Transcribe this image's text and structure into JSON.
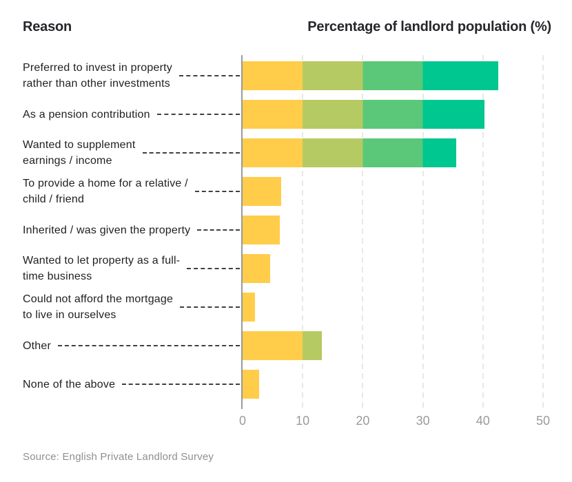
{
  "header": {
    "left_title": "Reason",
    "right_title": "Percentage of landlord population (%)"
  },
  "source_note": "Source: English Private Landlord Survey",
  "chart_data": {
    "type": "bar",
    "orientation": "horizontal",
    "title": "",
    "xlabel": "Percentage of landlord population (%)",
    "ylabel": "Reason",
    "categories": [
      "Preferred to invest in property\nrather than other investments",
      "As a pension contribution",
      "Wanted to supplement\nearnings / income",
      "To provide a home for a relative /\nchild / friend",
      "Inherited / was given the property",
      "Wanted to let property as a full-\ntime business",
      "Could not afford the mortgage\nto live in ourselves",
      "Other",
      "None of the above"
    ],
    "values": [
      42.5,
      40.3,
      35.5,
      6.4,
      6.2,
      4.6,
      2.1,
      13.2,
      2.7
    ],
    "xlim": [
      0,
      50
    ],
    "x_ticks": [
      "0",
      "10",
      "20",
      "30",
      "40",
      "50"
    ],
    "x_tick_values": [
      0,
      10,
      20,
      30,
      40,
      50
    ],
    "grid": "vertical dashed gridlines at each tick",
    "legend": "none",
    "segment_boundaries": [
      10,
      20,
      30
    ],
    "segment_colors": [
      "#FFCD4A",
      "#B5CA63",
      "#5AC878",
      "#00C690"
    ],
    "palette": {
      "axis_line": "#9A9A9A",
      "gridline": "#E8E8E2",
      "leader_dash": "#3F3F3F",
      "label_text": "#1F1F1F",
      "tick_text": "#9B9B9B",
      "title_text": "#26262B",
      "source_text": "#8F8F8F"
    }
  }
}
